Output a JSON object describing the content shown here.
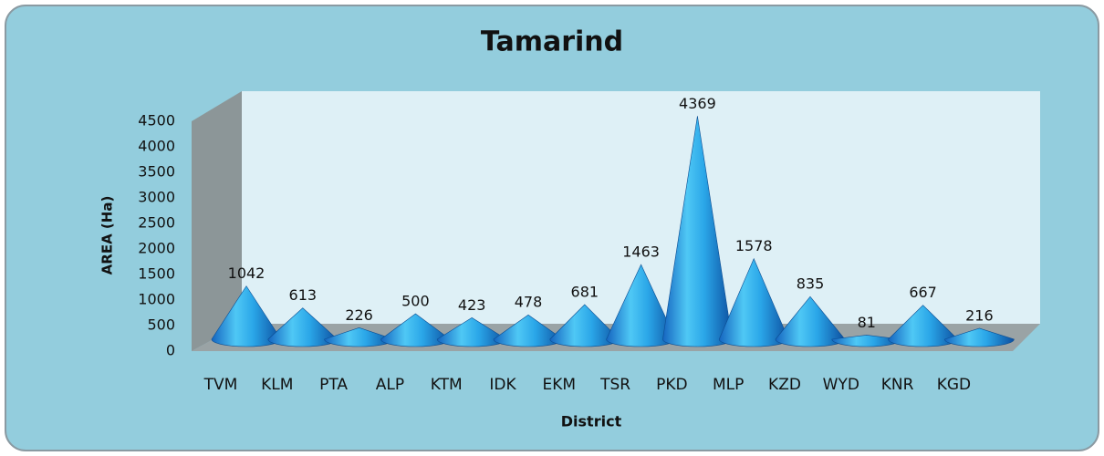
{
  "chart_data": {
    "type": "cone",
    "title": "Tamarind",
    "x_label": "District",
    "y_label": "AREA (Ha)",
    "categories": [
      "TVM",
      "KLM",
      "PTA",
      "ALP",
      "KTM",
      "IDK",
      "EKM",
      "TSR",
      "PKD",
      "MLP",
      "KZD",
      "WYD",
      "KNR",
      "KGD"
    ],
    "values": [
      1042,
      613,
      226,
      500,
      423,
      478,
      681,
      1463,
      4369,
      1578,
      835,
      81,
      667,
      216
    ],
    "color": "#1e90e0",
    "ylim": [
      0,
      4500
    ],
    "yticks": [
      0,
      500,
      1000,
      1500,
      2000,
      2500,
      3000,
      3500,
      4000,
      4500
    ],
    "grid": false
  }
}
